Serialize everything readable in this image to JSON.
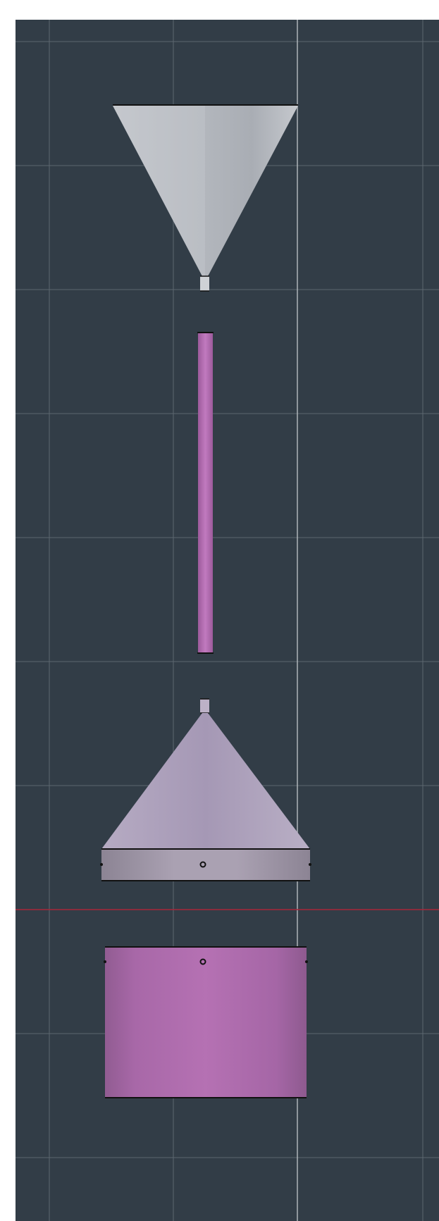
{
  "viewport": {
    "background_color": "#323d47",
    "grid_color": "#8b949c",
    "grid_major_color": "#c4c9ce",
    "axis_color": "#a8273a"
  },
  "scene": {
    "objects": [
      {
        "name": "funnel-top-cone",
        "kind": "cone",
        "color": "#b9bcc2"
      },
      {
        "name": "funnel-tip",
        "kind": "cylinder",
        "color": "#c9ccd1"
      },
      {
        "name": "stem-rod",
        "kind": "cylinder",
        "color": "#b86fb6"
      },
      {
        "name": "lid-knob",
        "kind": "cylinder",
        "color": "#bdb1c7"
      },
      {
        "name": "lid-cone",
        "kind": "cone",
        "color": "#a79bb8"
      },
      {
        "name": "lid-rim",
        "kind": "cylinder",
        "color": "#a59cae"
      },
      {
        "name": "base-cylinder",
        "kind": "cylinder",
        "color": "#b06fb0"
      }
    ]
  }
}
